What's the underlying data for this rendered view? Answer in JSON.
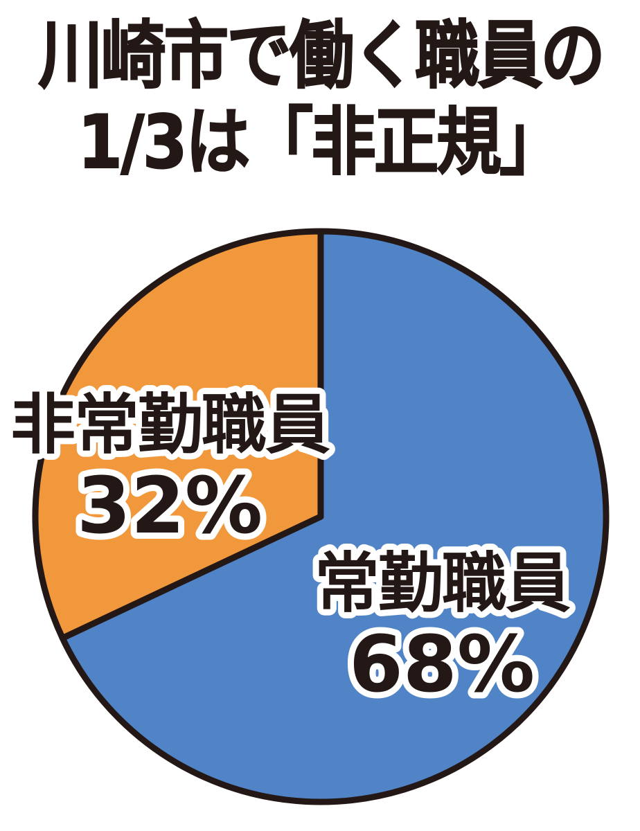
{
  "page": {
    "background": "#FFFFFF"
  },
  "title": {
    "line1": "川崎市で働く職員の",
    "line2": "1/3は「非正規」",
    "color": "#231815"
  },
  "chart_data": {
    "type": "pie",
    "title": "川崎市で働く職員の1/3は「非正規」",
    "start_position": "12-oclock",
    "direction": "clockwise",
    "outline_color": "#231815",
    "label_text_color": "#231815",
    "label_outline_color": "#FFFFFF",
    "background": "#FFFFFF",
    "slices": [
      {
        "label": "常勤職員",
        "pct_label": "68%",
        "value": 68,
        "color": "#5184C6"
      },
      {
        "label": "非常勤職員",
        "pct_label": "32%",
        "value": 32,
        "color": "#F2983C"
      }
    ]
  }
}
